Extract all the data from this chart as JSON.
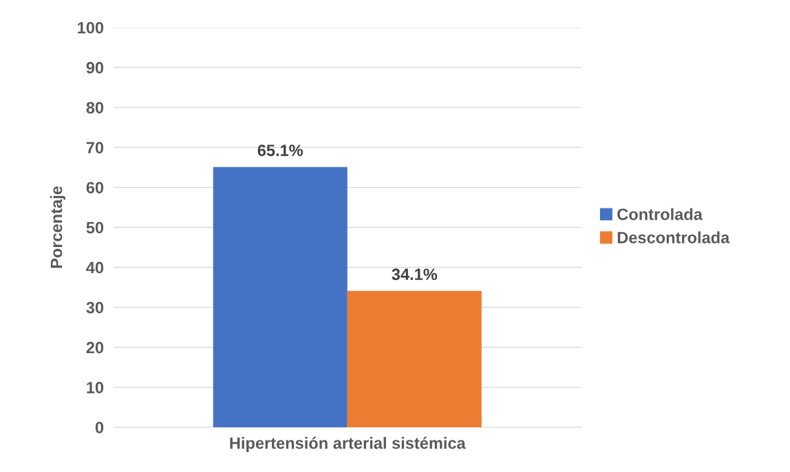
{
  "chart_data": {
    "type": "bar",
    "categories": [
      "Hipertensión arterial sistémica"
    ],
    "ylabel": "Porcentaje",
    "series": [
      {
        "name": "Controlada",
        "color": "#4472c4",
        "values": [
          65.1
        ],
        "value_labels": [
          "65.1%"
        ]
      },
      {
        "name": "Descontrolada",
        "color": "#ed7d31",
        "values": [
          34.1
        ],
        "value_labels": [
          "34.1%"
        ]
      }
    ],
    "ylim": [
      0,
      100
    ],
    "yticks": [
      0,
      10,
      20,
      30,
      40,
      50,
      60,
      70,
      80,
      90,
      100
    ],
    "grid": "y",
    "legend": "right"
  }
}
